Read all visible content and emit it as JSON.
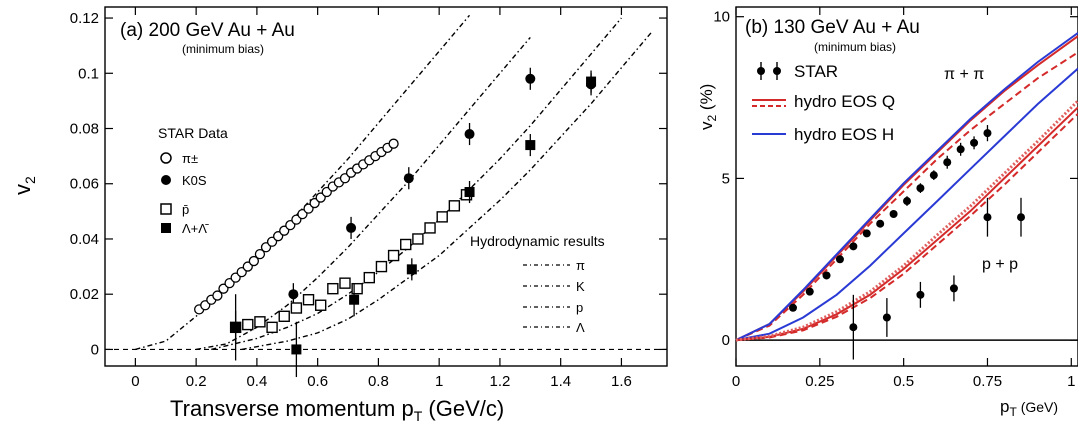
{
  "chart_data": [
    {
      "type": "scatter",
      "panel_label": "(a) 200 GeV Au + Au",
      "subtitle": "(minimum bias)",
      "xlabel": "Transverse momentum p",
      "xlabel_sub": "T",
      "xlabel_unit": " (GeV/c)",
      "ylabel": "v",
      "ylabel_sub": "2",
      "xlim": [
        -0.1,
        1.75
      ],
      "ylim": [
        -0.006,
        0.124
      ],
      "x_ticks": [
        0,
        0.2,
        0.4,
        0.6,
        0.8,
        1,
        1.2,
        1.4,
        1.6
      ],
      "x_tick_labels": [
        "0",
        "0.2",
        "0.4",
        "0.6",
        "0.8",
        "1",
        "1.2",
        "1.4",
        "1.6"
      ],
      "y_ticks": [
        0,
        0.02,
        0.04,
        0.06,
        0.08,
        0.1,
        0.12
      ],
      "y_tick_labels": [
        "0",
        "0.02",
        "0.04",
        "0.06",
        "0.08",
        "0.1",
        "0.12"
      ],
      "legend_title": "STAR Data",
      "legend": [
        "π±",
        "K0S",
        "p̄",
        "Λ+Λ̄"
      ],
      "hydro_title": "Hydrodynamic results",
      "hydro_legend": [
        "π",
        "K",
        "p",
        "Λ"
      ],
      "series": [
        {
          "name": "π±",
          "marker": "open-circle",
          "x": [
            0.21,
            0.23,
            0.25,
            0.27,
            0.29,
            0.31,
            0.33,
            0.35,
            0.37,
            0.39,
            0.41,
            0.43,
            0.45,
            0.47,
            0.49,
            0.51,
            0.53,
            0.55,
            0.57,
            0.59,
            0.61,
            0.63,
            0.65,
            0.67,
            0.69,
            0.71,
            0.73,
            0.75,
            0.77,
            0.79,
            0.81,
            0.83,
            0.85
          ],
          "y": [
            0.0145,
            0.016,
            0.018,
            0.0195,
            0.022,
            0.024,
            0.026,
            0.028,
            0.03,
            0.032,
            0.0345,
            0.037,
            0.039,
            0.041,
            0.043,
            0.045,
            0.047,
            0.049,
            0.051,
            0.053,
            0.055,
            0.057,
            0.059,
            0.0605,
            0.062,
            0.064,
            0.0655,
            0.067,
            0.0685,
            0.07,
            0.0715,
            0.073,
            0.0745
          ]
        },
        {
          "name": "K0S",
          "marker": "filled-circle",
          "x": [
            0.33,
            0.52,
            0.71,
            0.9,
            1.1,
            1.3,
            1.5
          ],
          "y": [
            0.008,
            0.02,
            0.044,
            0.062,
            0.078,
            0.098,
            0.096
          ],
          "err": [
            0.006,
            0.004,
            0.004,
            0.004,
            0.004,
            0.004,
            0.004
          ]
        },
        {
          "name": "p̄",
          "marker": "open-square",
          "x": [
            0.33,
            0.37,
            0.41,
            0.45,
            0.49,
            0.53,
            0.57,
            0.61,
            0.65,
            0.69,
            0.73,
            0.77,
            0.81,
            0.85,
            0.89,
            0.93,
            0.97,
            1.01,
            1.05,
            1.09
          ],
          "y": [
            0.008,
            0.009,
            0.01,
            0.008,
            0.012,
            0.015,
            0.018,
            0.016,
            0.022,
            0.024,
            0.022,
            0.026,
            0.03,
            0.034,
            0.038,
            0.04,
            0.044,
            0.048,
            0.052,
            0.056
          ]
        },
        {
          "name": "Λ+Λ̄",
          "marker": "filled-square",
          "x": [
            0.33,
            0.53,
            0.72,
            0.91,
            1.1,
            1.3,
            1.5
          ],
          "y": [
            0.008,
            0.0,
            0.018,
            0.029,
            0.057,
            0.074,
            0.097
          ],
          "err": [
            0.012,
            0.01,
            0.006,
            0.004,
            0.004,
            0.004,
            0.004
          ]
        }
      ],
      "curves": [
        {
          "name": "π",
          "x": [
            0.0,
            0.1,
            0.2,
            0.3,
            0.4,
            0.5,
            0.6,
            0.7,
            0.8,
            0.9,
            1.0,
            1.1
          ],
          "y": [
            0.0,
            0.003,
            0.012,
            0.022,
            0.033,
            0.045,
            0.057,
            0.069,
            0.082,
            0.095,
            0.108,
            0.121
          ]
        },
        {
          "name": "K",
          "x": [
            0.2,
            0.3,
            0.4,
            0.5,
            0.6,
            0.7,
            0.8,
            0.9,
            1.0,
            1.1,
            1.2,
            1.3
          ],
          "y": [
            0.0,
            0.002,
            0.008,
            0.016,
            0.026,
            0.037,
            0.049,
            0.061,
            0.074,
            0.087,
            0.1,
            0.113
          ]
        },
        {
          "name": "p",
          "x": [
            0.25,
            0.4,
            0.5,
            0.6,
            0.7,
            0.8,
            0.9,
            1.0,
            1.1,
            1.2,
            1.3,
            1.4,
            1.5,
            1.6
          ],
          "y": [
            0.0,
            0.004,
            0.008,
            0.013,
            0.02,
            0.028,
            0.037,
            0.047,
            0.058,
            0.069,
            0.081,
            0.094,
            0.107,
            0.12
          ]
        },
        {
          "name": "Λ",
          "x": [
            0.35,
            0.5,
            0.6,
            0.7,
            0.8,
            0.9,
            1.0,
            1.1,
            1.2,
            1.3,
            1.4,
            1.5,
            1.6,
            1.7
          ],
          "y": [
            0.0,
            0.003,
            0.006,
            0.011,
            0.018,
            0.026,
            0.034,
            0.044,
            0.054,
            0.065,
            0.077,
            0.089,
            0.102,
            0.115
          ]
        }
      ],
      "grid": false
    },
    {
      "type": "scatter",
      "panel_label": "(b) 130 GeV Au + Au",
      "subtitle": "(minimum bias)",
      "xlabel": "p",
      "xlabel_sub": "T",
      "xlabel_unit": " (GeV)",
      "ylabel": "v",
      "ylabel_sub": "2",
      "ylabel_unit": " (%)",
      "xlim": [
        0,
        1.02
      ],
      "ylim": [
        -0.8,
        10.3
      ],
      "x_ticks": [
        0,
        0.25,
        0.5,
        0.75,
        1
      ],
      "x_tick_labels": [
        "0",
        "0.25",
        "0.5",
        "0.75",
        "1"
      ],
      "y_ticks": [
        0,
        5,
        10
      ],
      "y_tick_labels": [
        "0",
        "5",
        "10"
      ],
      "legend": [
        "STAR",
        "hydro EOS Q",
        "hydro EOS H"
      ],
      "annotations": [
        "π + π",
        "p + p"
      ],
      "series": [
        {
          "name": "π + π",
          "marker": "filled-circle",
          "x": [
            0.17,
            0.22,
            0.27,
            0.31,
            0.35,
            0.39,
            0.43,
            0.47,
            0.51,
            0.55,
            0.59,
            0.63,
            0.67,
            0.71,
            0.75
          ],
          "y": [
            1.0,
            1.5,
            2.0,
            2.5,
            2.9,
            3.3,
            3.6,
            3.9,
            4.3,
            4.7,
            5.1,
            5.5,
            5.9,
            6.1,
            6.4
          ],
          "err": [
            0.1,
            0.1,
            0.1,
            0.1,
            0.1,
            0.1,
            0.1,
            0.1,
            0.15,
            0.15,
            0.15,
            0.2,
            0.2,
            0.2,
            0.25
          ]
        },
        {
          "name": "p + p",
          "marker": "filled-circle",
          "x": [
            0.35,
            0.45,
            0.55,
            0.65,
            0.75,
            0.85
          ],
          "y": [
            0.4,
            0.7,
            1.4,
            1.6,
            3.8,
            3.8
          ],
          "err": [
            1.0,
            0.6,
            0.4,
            0.4,
            0.6,
            0.6
          ]
        }
      ],
      "curves": [
        {
          "name": "hydro EOS Q π",
          "color": "#d42a2a",
          "style": "solid",
          "x": [
            0,
            0.1,
            0.2,
            0.3,
            0.4,
            0.5,
            0.6,
            0.7,
            0.8,
            0.9,
            1.02
          ],
          "y": [
            0,
            0.5,
            1.5,
            2.6,
            3.7,
            4.8,
            5.8,
            6.8,
            7.7,
            8.5,
            9.4
          ]
        },
        {
          "name": "hydro EOS Q π dashed",
          "color": "#d42a2a",
          "style": "dashed",
          "x": [
            0,
            0.1,
            0.2,
            0.3,
            0.4,
            0.5,
            0.6,
            0.7,
            0.8,
            0.9,
            1.02
          ],
          "y": [
            0,
            0.45,
            1.4,
            2.5,
            3.6,
            4.6,
            5.6,
            6.5,
            7.3,
            8.1,
            8.9
          ]
        },
        {
          "name": "hydro EOS H π",
          "color": "#2a3ad4",
          "style": "solid",
          "x": [
            0,
            0.1,
            0.2,
            0.3,
            0.4,
            0.5,
            0.6,
            0.7,
            0.8,
            0.9,
            1.02
          ],
          "y": [
            0,
            0.5,
            1.55,
            2.65,
            3.75,
            4.85,
            5.85,
            6.85,
            7.75,
            8.6,
            9.5
          ]
        },
        {
          "name": "hydro EOS H p",
          "color": "#2a3ad4",
          "style": "solid",
          "x": [
            0,
            0.1,
            0.2,
            0.3,
            0.4,
            0.5,
            0.6,
            0.7,
            0.8,
            0.9,
            1.02
          ],
          "y": [
            0,
            0.2,
            0.7,
            1.4,
            2.3,
            3.3,
            4.3,
            5.3,
            6.3,
            7.3,
            8.4
          ]
        },
        {
          "name": "hydro EOS Q p",
          "color": "#d42a2a",
          "style": "solid",
          "x": [
            0,
            0.1,
            0.2,
            0.3,
            0.4,
            0.5,
            0.6,
            0.7,
            0.8,
            0.9,
            1.02
          ],
          "y": [
            0,
            0.1,
            0.35,
            0.8,
            1.4,
            2.2,
            3.1,
            4.0,
            5.0,
            6.0,
            7.2
          ]
        },
        {
          "name": "hydro EOS Q p dashed",
          "color": "#d42a2a",
          "style": "dashed",
          "x": [
            0,
            0.1,
            0.2,
            0.3,
            0.4,
            0.5,
            0.6,
            0.7,
            0.8,
            0.9,
            1.02
          ],
          "y": [
            0,
            0.08,
            0.3,
            0.72,
            1.3,
            2.05,
            2.95,
            3.85,
            4.8,
            5.8,
            7.0
          ]
        },
        {
          "name": "hydro EOS Q p band",
          "color": "#e06060",
          "style": "dotted",
          "x": [
            0,
            0.1,
            0.2,
            0.3,
            0.4,
            0.5,
            0.6,
            0.7,
            0.8,
            0.9,
            1.02
          ],
          "y": [
            0,
            0.12,
            0.4,
            0.88,
            1.5,
            2.3,
            3.25,
            4.15,
            5.15,
            6.15,
            7.4
          ]
        }
      ],
      "grid": false
    }
  ]
}
